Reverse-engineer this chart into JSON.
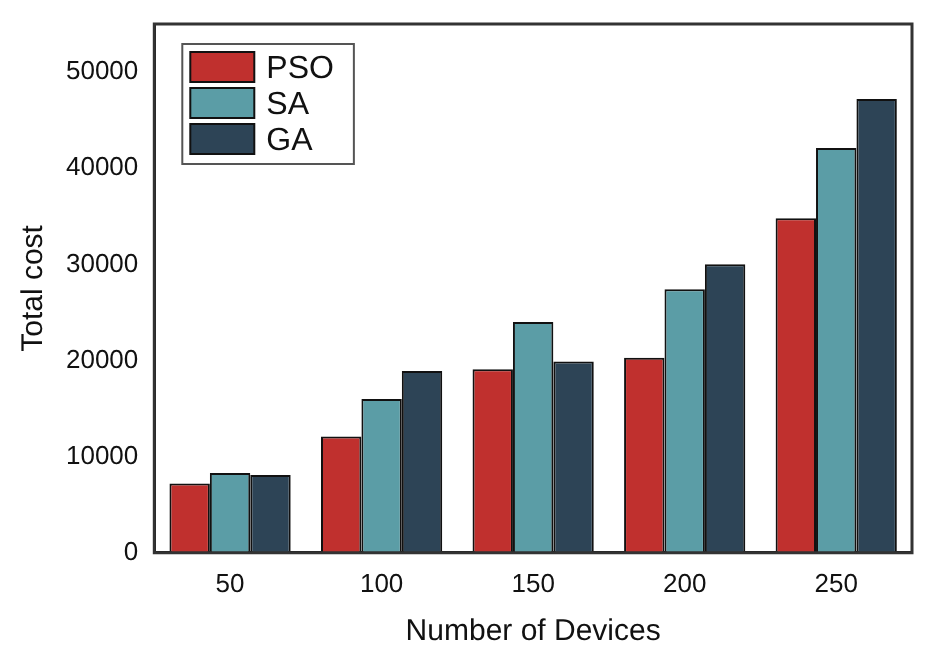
{
  "chart_data": {
    "type": "bar",
    "xlabel": "Number of Devices",
    "ylabel": "Total cost",
    "categories": [
      "50",
      "100",
      "150",
      "200",
      "250"
    ],
    "series": [
      {
        "name": "PSO",
        "color": "#c0302e",
        "values": [
          7200,
          12100,
          19100,
          20300,
          34800
        ]
      },
      {
        "name": "SA",
        "color": "#5b9da6",
        "values": [
          8300,
          16000,
          24000,
          27400,
          42100
        ]
      },
      {
        "name": "GA",
        "color": "#2d4456",
        "values": [
          8100,
          18900,
          19900,
          30000,
          47200
        ]
      }
    ],
    "ylim": [
      0,
      55000
    ],
    "yticks": [
      0,
      10000,
      20000,
      30000,
      40000,
      50000
    ],
    "grid": false,
    "legend": "top left"
  }
}
